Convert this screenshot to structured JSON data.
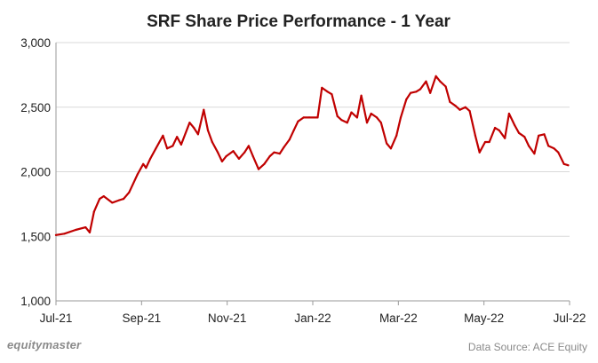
{
  "chart_data": {
    "type": "line",
    "title": "SRF Share Price Performance - 1 Year",
    "xlabel": "",
    "ylabel": "",
    "ylim": [
      1000,
      3000
    ],
    "yticks": [
      1000,
      1500,
      2000,
      2500,
      3000
    ],
    "ytick_labels": [
      "1,000",
      "1,500",
      "2,000",
      "2,500",
      "3,000"
    ],
    "xticks": [
      "Jul-21",
      "Sep-21",
      "Nov-21",
      "Jan-22",
      "Mar-22",
      "May-22",
      "Jul-22"
    ],
    "grid": "horizontal",
    "color": "#c00000",
    "series": [
      {
        "x": [
          "2021-07-01",
          "2021-07-07",
          "2021-07-15",
          "2021-07-22",
          "2021-07-25",
          "2021-07-28",
          "2021-08-01",
          "2021-08-04",
          "2021-08-10",
          "2021-08-15",
          "2021-08-18",
          "2021-08-22",
          "2021-08-28",
          "2021-09-01",
          "2021-09-03",
          "2021-09-06",
          "2021-09-10",
          "2021-09-15",
          "2021-09-18",
          "2021-09-22",
          "2021-09-25",
          "2021-09-28",
          "2021-10-04",
          "2021-10-07",
          "2021-10-10",
          "2021-10-14",
          "2021-10-17",
          "2021-10-20",
          "2021-10-24",
          "2021-10-27",
          "2021-10-30",
          "2021-11-04",
          "2021-11-08",
          "2021-11-12",
          "2021-11-15",
          "2021-11-18",
          "2021-11-22",
          "2021-11-26",
          "2021-11-30",
          "2021-12-03",
          "2021-12-07",
          "2021-12-10",
          "2021-12-14",
          "2021-12-17",
          "2021-12-20",
          "2021-12-24",
          "2021-12-28",
          "2022-01-03",
          "2022-01-06",
          "2022-01-10",
          "2022-01-13",
          "2022-01-17",
          "2022-01-20",
          "2022-01-24",
          "2022-01-27",
          "2022-01-31",
          "2022-02-03",
          "2022-02-07",
          "2022-02-10",
          "2022-02-14",
          "2022-02-17",
          "2022-02-21",
          "2022-02-24",
          "2022-02-28",
          "2022-03-03",
          "2022-03-07",
          "2022-03-10",
          "2022-03-14",
          "2022-03-17",
          "2022-03-21",
          "2022-03-24",
          "2022-03-28",
          "2022-03-31",
          "2022-04-04",
          "2022-04-07",
          "2022-04-11",
          "2022-04-14",
          "2022-04-18",
          "2022-04-21",
          "2022-04-25",
          "2022-04-28",
          "2022-05-02",
          "2022-05-05",
          "2022-05-09",
          "2022-05-12",
          "2022-05-16",
          "2022-05-19",
          "2022-05-23",
          "2022-05-26",
          "2022-05-30",
          "2022-06-02",
          "2022-06-06",
          "2022-06-09",
          "2022-06-13",
          "2022-06-16",
          "2022-06-20",
          "2022-06-23",
          "2022-06-27",
          "2022-06-30"
        ],
        "values": [
          1510,
          1520,
          1550,
          1570,
          1530,
          1690,
          1790,
          1810,
          1760,
          1780,
          1790,
          1840,
          1980,
          2060,
          2030,
          2100,
          2180,
          2280,
          2180,
          2200,
          2270,
          2210,
          2380,
          2340,
          2290,
          2480,
          2320,
          2230,
          2150,
          2080,
          2120,
          2160,
          2100,
          2150,
          2200,
          2120,
          2020,
          2060,
          2120,
          2150,
          2140,
          2190,
          2250,
          2320,
          2390,
          2420,
          2420,
          2420,
          2650,
          2620,
          2600,
          2430,
          2400,
          2380,
          2460,
          2420,
          2590,
          2380,
          2450,
          2420,
          2380,
          2220,
          2180,
          2280,
          2420,
          2560,
          2610,
          2620,
          2640,
          2700,
          2610,
          2740,
          2700,
          2660,
          2540,
          2510,
          2480,
          2500,
          2470,
          2280,
          2150,
          2230,
          2230,
          2340,
          2320,
          2260,
          2450,
          2360,
          2300,
          2270,
          2200,
          2140,
          2280,
          2290,
          2200,
          2180,
          2150,
          2060,
          2050
        ]
      }
    ]
  },
  "footer": {
    "brand": "equitymaster",
    "source": "Data Source: ACE Equity"
  }
}
